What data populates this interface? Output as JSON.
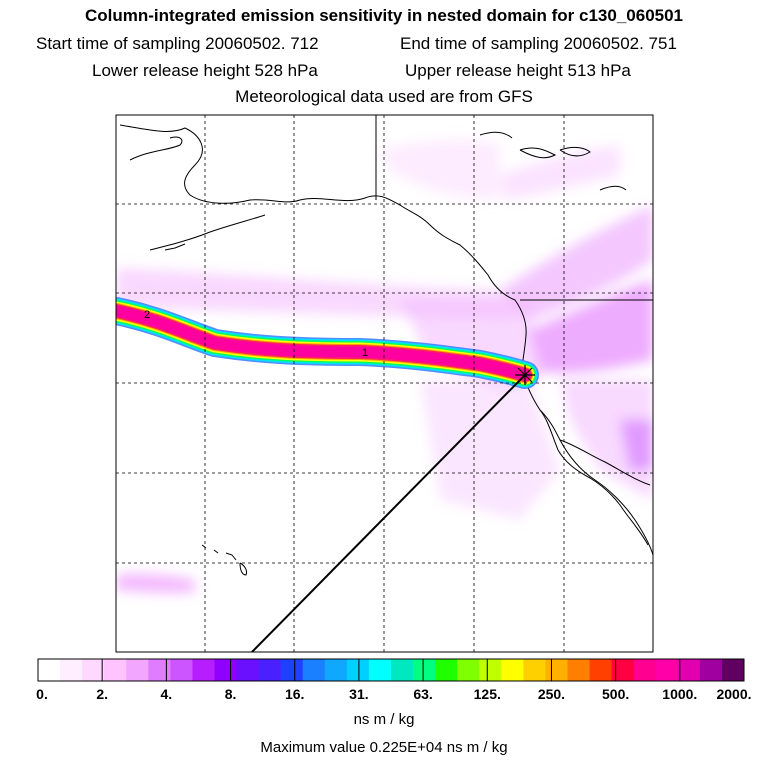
{
  "header": {
    "title": "Column-integrated emission sensitivity in nested domain for c130_060501",
    "start_label": "Start time of sampling 20060502.   712",
    "end_label": "End time of sampling 20060502.   751",
    "lower_label": "Lower release height  528 hPa",
    "upper_label": "Upper release height  513 hPa",
    "met_label": "Meteorological data used are from GFS"
  },
  "map": {
    "day_markers": [
      "1",
      "2"
    ],
    "plume_colors": [
      "#ff00a0",
      "#ff2060",
      "#ffa000",
      "#ffff00",
      "#00ff60",
      "#00e0ff",
      "#4080ff"
    ],
    "land_color": "#000000",
    "background": "#ffffff"
  },
  "colorbar": {
    "colors": [
      "#ffffff",
      "#ffeeff",
      "#ffd8ff",
      "#ffc4ff",
      "#f2a6ff",
      "#e07cff",
      "#cc55ff",
      "#b61eff",
      "#9000ff",
      "#6a10ff",
      "#4a20ff",
      "#2040ff",
      "#1a80ff",
      "#10a8ff",
      "#00d0ff",
      "#00ffff",
      "#00e8c0",
      "#00ff80",
      "#20ff00",
      "#80ff00",
      "#c0ff00",
      "#ffff00",
      "#ffd000",
      "#ffb000",
      "#ff8000",
      "#ff4000",
      "#ff0040",
      "#ff0090",
      "#ff00a8",
      "#e000b0",
      "#a000a0",
      "#600060"
    ],
    "labels": [
      "0.",
      "2.",
      "4.",
      "8.",
      "16.",
      "31.",
      "63.",
      "125.",
      "250.",
      "500.",
      "1000.",
      "2000."
    ],
    "unit": "ns m / kg",
    "max_value": "Maximum value  0.225E+04 ns m / kg"
  }
}
